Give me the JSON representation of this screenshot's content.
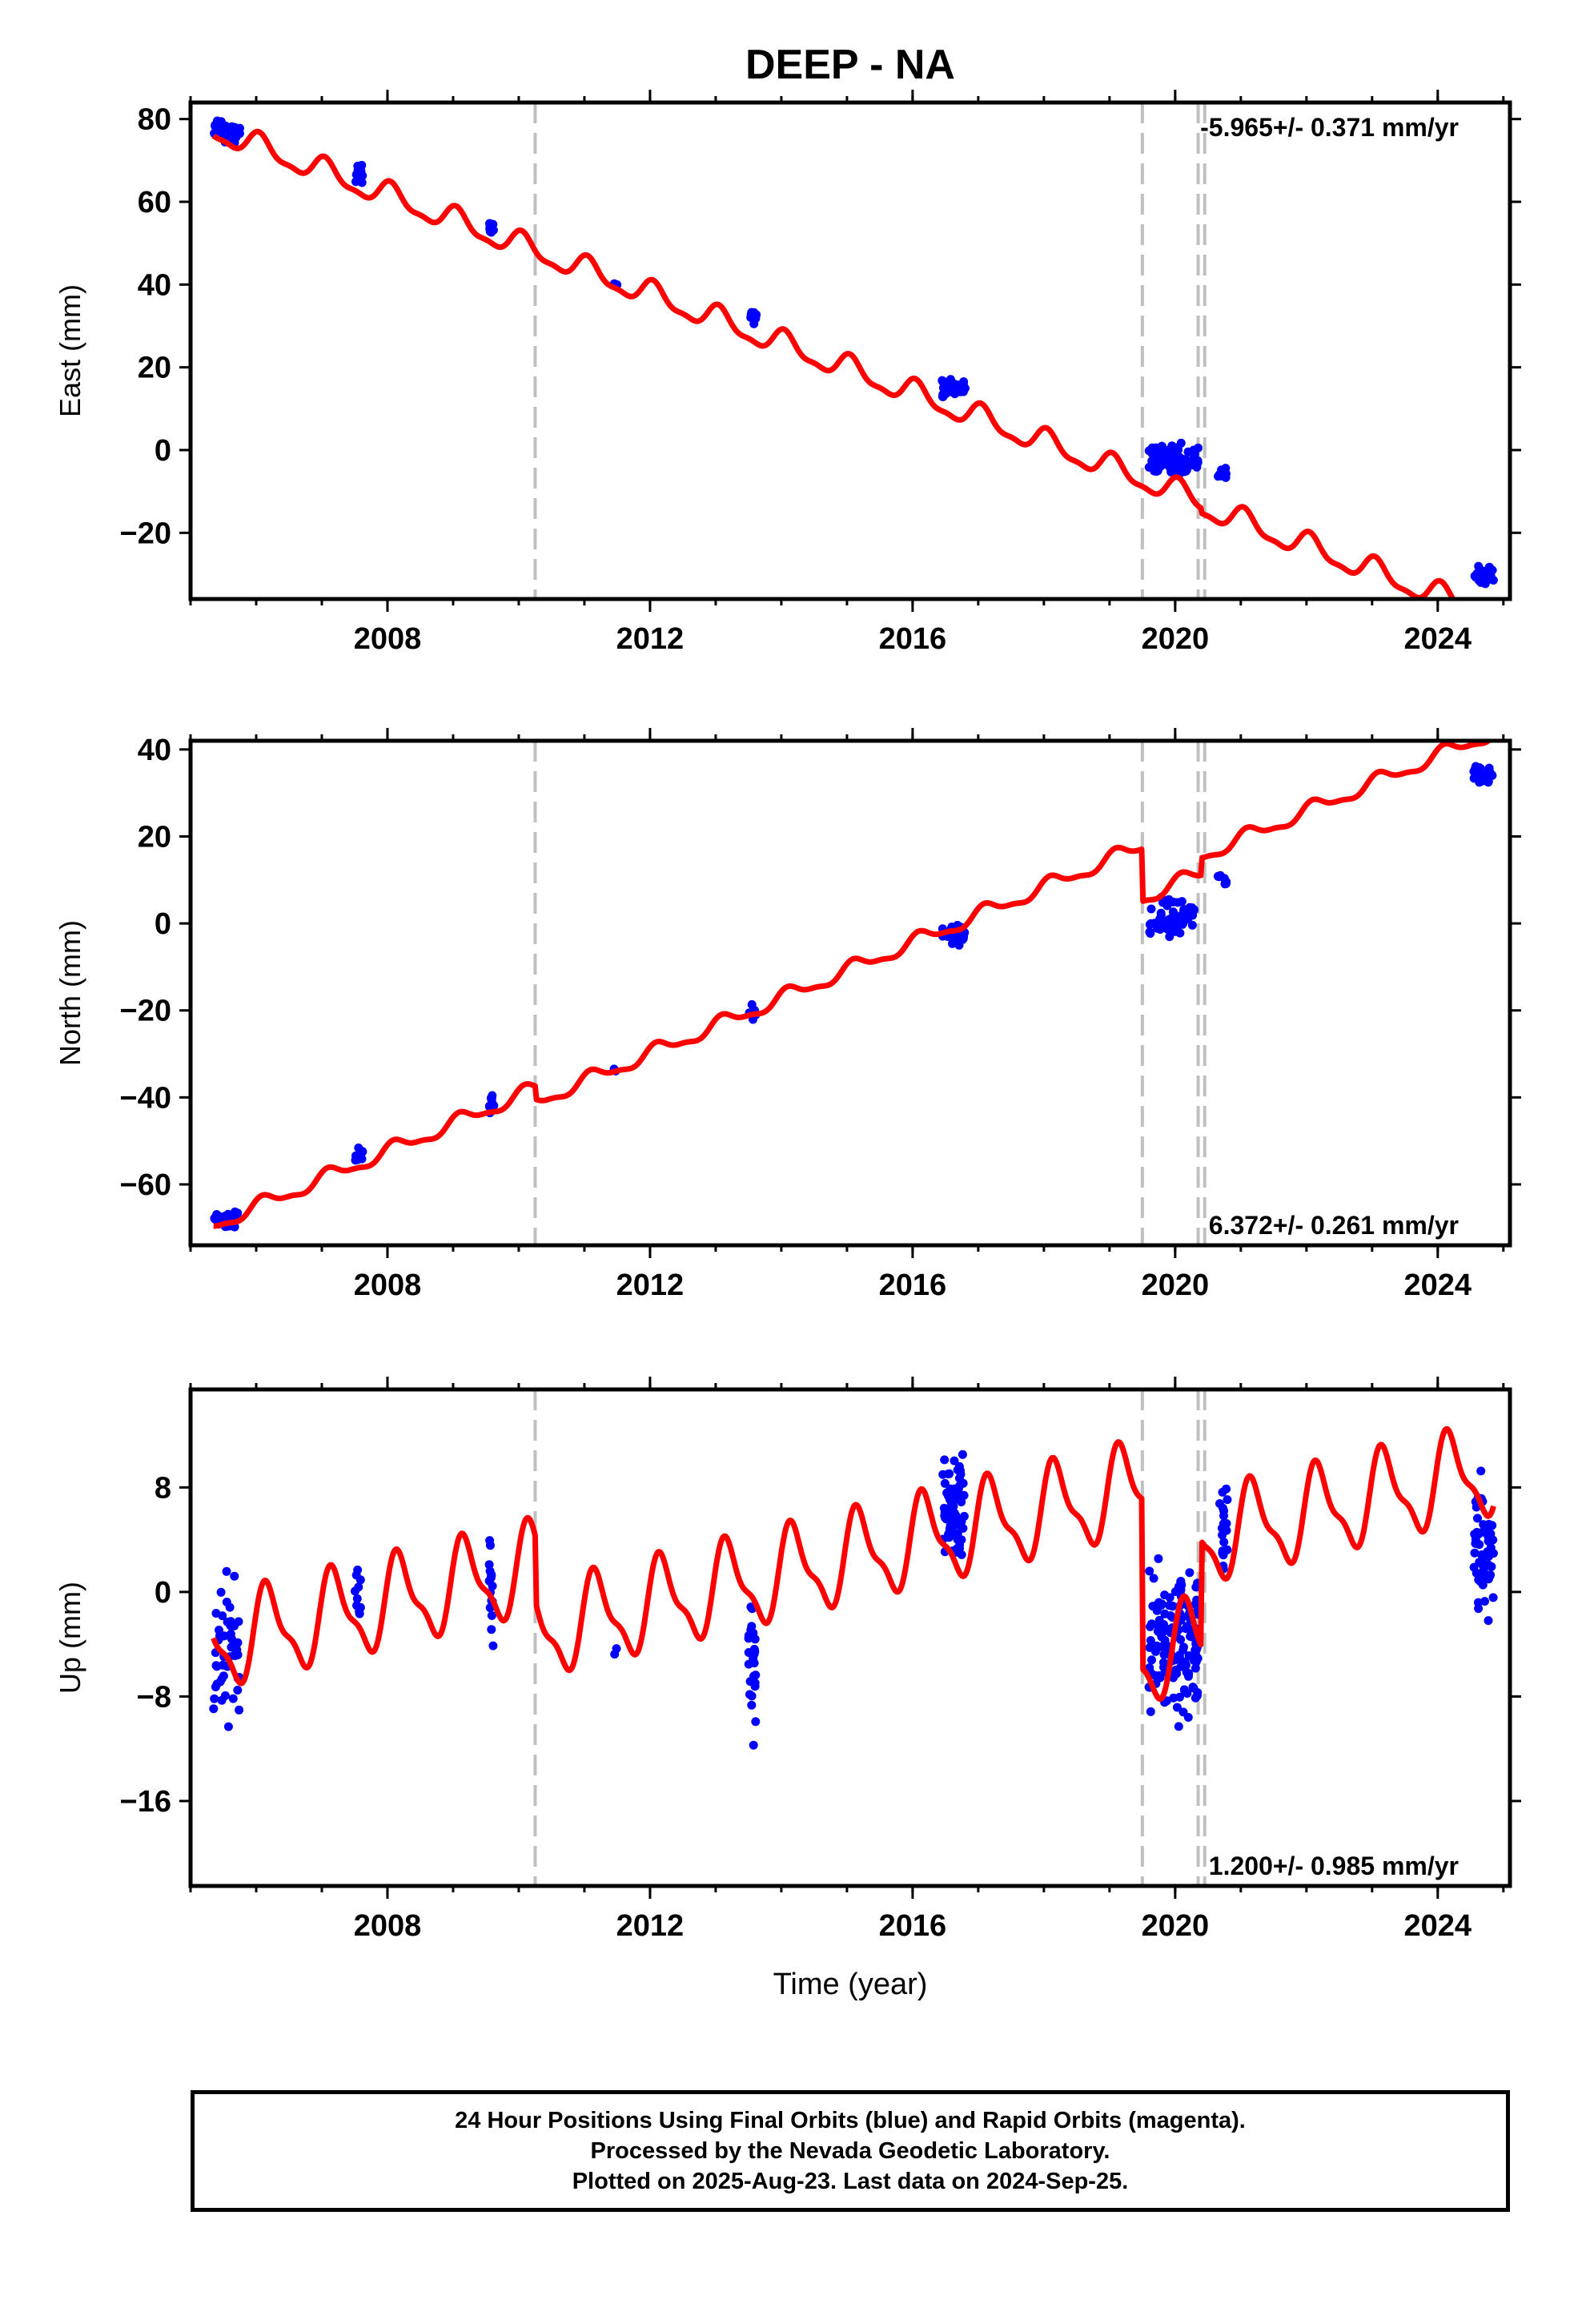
{
  "title": "DEEP - NA",
  "xlabel": "Time (year)",
  "colors": {
    "final_orbits": "#0000ff",
    "model": "#ff0000",
    "offsets": "#c0c0c0",
    "frame": "#000000"
  },
  "caption": [
    "24 Hour Positions Using Final Orbits (blue) and Rapid Orbits (magenta).",
    "Processed by the Nevada Geodetic Laboratory.",
    "Plotted on 2025-Aug-23. Last data on 2024-Sep-25."
  ],
  "chart_data": [
    {
      "type": "scatter",
      "ylabel": "East (mm)",
      "rate": "-5.965+/- 0.371 mm/yr",
      "xlim": [
        2005.0,
        2025.1
      ],
      "ylim": [
        -36,
        84
      ],
      "xticks": [
        2008,
        2012,
        2016,
        2020,
        2024
      ],
      "yticks": [
        -20,
        0,
        20,
        40,
        60,
        80
      ],
      "offsets": [
        2010.25,
        2019.5,
        2020.35,
        2020.45
      ],
      "model": {
        "intercept": 77.0,
        "rate": -5.965,
        "seasonal_amp": 2.8,
        "seasonal_phase": 1.2,
        "steps": [
          {
            "t": 2019.5,
            "d": 0.0
          },
          {
            "t": 2020.4,
            "d": -1.2
          }
        ]
      },
      "clusters": [
        {
          "start": 2005.35,
          "end": 2005.75,
          "center": 77.0,
          "spread": 3.0,
          "count": 40
        },
        {
          "start": 2007.5,
          "end": 2007.62,
          "center": 66.5,
          "spread": 1.8,
          "count": 12
        },
        {
          "start": 2009.55,
          "end": 2009.62,
          "center": 54.0,
          "spread": 1.5,
          "count": 8
        },
        {
          "start": 2011.45,
          "end": 2011.5,
          "center": 40.0,
          "spread": 0.5,
          "count": 2
        },
        {
          "start": 2013.5,
          "end": 2013.62,
          "center": 32.5,
          "spread": 1.8,
          "count": 10
        },
        {
          "start": 2016.45,
          "end": 2016.8,
          "center": 15.0,
          "spread": 1.8,
          "count": 45
        },
        {
          "start": 2019.6,
          "end": 2020.35,
          "center": -2.5,
          "spread": 3.0,
          "count": 90
        },
        {
          "start": 2020.65,
          "end": 2020.78,
          "center": -5.5,
          "spread": 1.3,
          "count": 10
        },
        {
          "start": 2024.55,
          "end": 2024.85,
          "center": -30.0,
          "spread": 1.8,
          "count": 28
        }
      ]
    },
    {
      "type": "scatter",
      "ylabel": "North (mm)",
      "rate": "6.372+/- 0.261 mm/yr",
      "xlim": [
        2005.0,
        2025.1
      ],
      "ylim": [
        -74,
        42
      ],
      "xticks": [
        2008,
        2012,
        2016,
        2020,
        2024
      ],
      "yticks": [
        -60,
        -40,
        -20,
        0,
        20,
        40
      ],
      "offsets": [
        2010.25,
        2019.5,
        2020.35,
        2020.45
      ],
      "model": {
        "intercept": -69.0,
        "rate": 6.372,
        "seasonal_amp": 1.6,
        "seasonal_phase": 0.8,
        "steps": [
          {
            "t": 2010.25,
            "d": -3.0
          },
          {
            "t": 2019.5,
            "d": -12.0
          },
          {
            "t": 2020.4,
            "d": 4.0
          }
        ]
      },
      "clusters": [
        {
          "start": 2005.35,
          "end": 2005.75,
          "center": -68.5,
          "spread": 1.8,
          "count": 32
        },
        {
          "start": 2007.5,
          "end": 2007.62,
          "center": -53.5,
          "spread": 1.3,
          "count": 10
        },
        {
          "start": 2009.55,
          "end": 2009.62,
          "center": -41.5,
          "spread": 2.0,
          "count": 10
        },
        {
          "start": 2011.45,
          "end": 2011.5,
          "center": -33.5,
          "spread": 0.5,
          "count": 2
        },
        {
          "start": 2013.5,
          "end": 2013.62,
          "center": -20.5,
          "spread": 1.8,
          "count": 10
        },
        {
          "start": 2016.45,
          "end": 2016.8,
          "center": -2.5,
          "spread": 2.5,
          "count": 35
        },
        {
          "start": 2019.6,
          "end": 2020.3,
          "center": 1.0,
          "spread": 3.5,
          "count": 55
        },
        {
          "start": 2020.65,
          "end": 2020.78,
          "center": 10.5,
          "spread": 1.2,
          "count": 8
        },
        {
          "start": 2024.55,
          "end": 2024.85,
          "center": 34.5,
          "spread": 1.8,
          "count": 28
        }
      ]
    },
    {
      "type": "scatter",
      "ylabel": "Up (mm)",
      "rate": "1.200+/- 0.985 mm/yr",
      "xlim": [
        2005.0,
        2025.1
      ],
      "ylim": [
        -22.5,
        15.5
      ],
      "xticks": [
        2008,
        2012,
        2016,
        2020,
        2024
      ],
      "yticks": [
        -16,
        -8,
        0,
        8
      ],
      "offsets": [
        2010.25,
        2019.5,
        2020.35,
        2020.45
      ],
      "model": {
        "intercept": -4.0,
        "rate": 1.2,
        "seasonal_amp": 3.2,
        "seasonal_phase": 0.4,
        "steps": [
          {
            "t": 2010.25,
            "d": -5.0
          },
          {
            "t": 2019.5,
            "d": -13.0
          },
          {
            "t": 2020.4,
            "d": 8.0
          }
        ]
      },
      "clusters": [
        {
          "start": 2005.35,
          "end": 2005.75,
          "center": -4.5,
          "spread": 4.0,
          "count": 50
        },
        {
          "start": 2007.5,
          "end": 2007.6,
          "center": 0.0,
          "spread": 2.5,
          "count": 10
        },
        {
          "start": 2009.55,
          "end": 2009.62,
          "center": 0.0,
          "spread": 4.0,
          "count": 16
        },
        {
          "start": 2011.45,
          "end": 2011.5,
          "center": -4.5,
          "spread": 0.4,
          "count": 2
        },
        {
          "start": 2013.5,
          "end": 2013.62,
          "center": -5.5,
          "spread": 4.5,
          "count": 28
        },
        {
          "start": 2016.45,
          "end": 2016.8,
          "center": 6.5,
          "spread": 3.5,
          "count": 75
        },
        {
          "start": 2019.6,
          "end": 2020.35,
          "center": -4.0,
          "spread": 5.0,
          "count": 140
        },
        {
          "start": 2020.65,
          "end": 2020.8,
          "center": 5.0,
          "spread": 3.0,
          "count": 20
        },
        {
          "start": 2024.55,
          "end": 2024.85,
          "center": 3.5,
          "spread": 4.0,
          "count": 55
        }
      ]
    }
  ]
}
